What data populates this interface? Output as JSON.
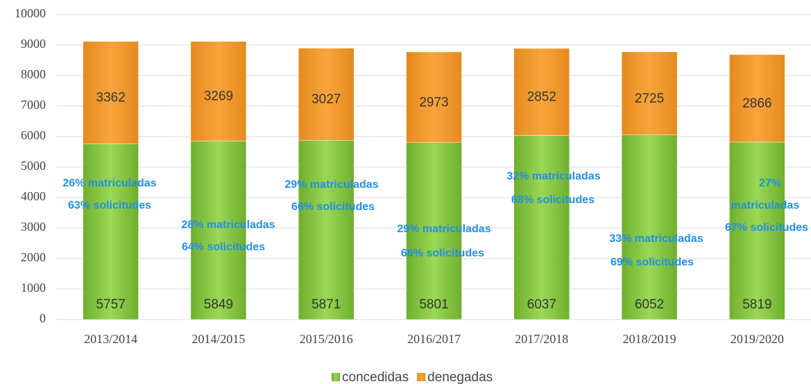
{
  "chart_data": {
    "type": "stacked_bar",
    "categories": [
      "2013/2014",
      "2014/2015",
      "2015/2016",
      "2016/2017",
      "2017/2018",
      "2018/2019",
      "2019/2020"
    ],
    "series": [
      {
        "name": "concedidas",
        "color": "#8dcf45",
        "values": [
          5757,
          5849,
          5871,
          5801,
          6037,
          6052,
          5819
        ]
      },
      {
        "name": "denegadas",
        "color": "#f59a2c",
        "values": [
          3362,
          3269,
          3027,
          2973,
          2852,
          2725,
          2866
        ]
      }
    ],
    "ylim": [
      0,
      10000
    ],
    "yticks": [
      0,
      1000,
      2000,
      3000,
      4000,
      5000,
      6000,
      7000,
      8000,
      9000,
      10000
    ],
    "grid": true,
    "legend": "bottom",
    "annotations": [
      [
        "26% matriculadas",
        "63% solicitudes"
      ],
      [
        "28% matriculadas",
        "64% solicitudes"
      ],
      [
        "29% matriculadas",
        "66% solicitudes"
      ],
      [
        "29% matriculadas",
        "66% solicitudes"
      ],
      [
        "32% matriculadas",
        "68% solicitudes"
      ],
      [
        "33% matriculadas",
        "69% solicitudes"
      ],
      [
        "27%",
        "matriculadas",
        "67% solicitudes"
      ]
    ]
  }
}
